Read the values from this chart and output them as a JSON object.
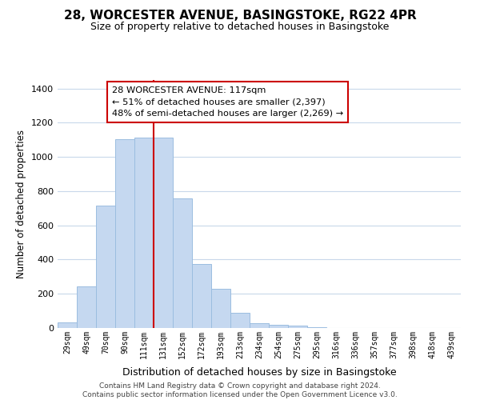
{
  "title": "28, WORCESTER AVENUE, BASINGSTOKE, RG22 4PR",
  "subtitle": "Size of property relative to detached houses in Basingstoke",
  "xlabel": "Distribution of detached houses by size in Basingstoke",
  "ylabel": "Number of detached properties",
  "bar_labels": [
    "29sqm",
    "49sqm",
    "70sqm",
    "90sqm",
    "111sqm",
    "131sqm",
    "152sqm",
    "172sqm",
    "193sqm",
    "213sqm",
    "234sqm",
    "254sqm",
    "275sqm",
    "295sqm",
    "316sqm",
    "336sqm",
    "357sqm",
    "377sqm",
    "398sqm",
    "418sqm",
    "439sqm"
  ],
  "bar_heights": [
    35,
    245,
    715,
    1105,
    1115,
    1115,
    760,
    375,
    230,
    90,
    30,
    20,
    15,
    5,
    0,
    0,
    0,
    0,
    0,
    0,
    0
  ],
  "bar_color": "#c5d8f0",
  "bar_edge_color": "#9bbde0",
  "highlight_line_color": "#cc0000",
  "annotation_title": "28 WORCESTER AVENUE: 117sqm",
  "annotation_line1": "← 51% of detached houses are smaller (2,397)",
  "annotation_line2": "48% of semi-detached houses are larger (2,269) →",
  "annotation_box_color": "#ffffff",
  "annotation_box_edge": "#cc0000",
  "ylim": [
    0,
    1450
  ],
  "yticks": [
    0,
    200,
    400,
    600,
    800,
    1000,
    1200,
    1400
  ],
  "footer_line1": "Contains HM Land Registry data © Crown copyright and database right 2024.",
  "footer_line2": "Contains public sector information licensed under the Open Government Licence v3.0.",
  "bg_color": "#ffffff",
  "grid_color": "#c8d8ea"
}
